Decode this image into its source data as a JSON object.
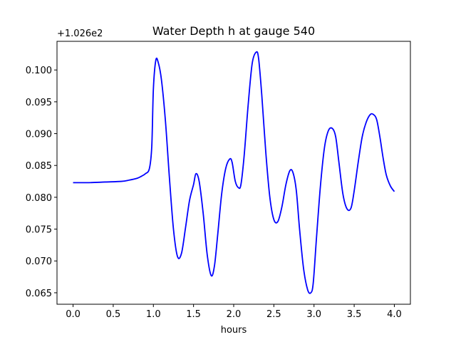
{
  "chart_data": {
    "type": "line",
    "title": "Water Depth h at gauge 540",
    "xlabel": "hours",
    "ylabel": "",
    "y_offset_label": "+1.026e2",
    "xlim": [
      -0.2,
      4.2
    ],
    "ylim": [
      0.0632,
      0.1045
    ],
    "x_ticks": [
      0.0,
      0.5,
      1.0,
      1.5,
      2.0,
      2.5,
      3.0,
      3.5,
      4.0
    ],
    "x_tick_labels": [
      "0.0",
      "0.5",
      "1.0",
      "1.5",
      "2.0",
      "2.5",
      "3.0",
      "3.5",
      "4.0"
    ],
    "y_ticks": [
      0.065,
      0.07,
      0.075,
      0.08,
      0.085,
      0.09,
      0.095,
      0.1
    ],
    "y_tick_labels": [
      "0.065",
      "0.070",
      "0.075",
      "0.080",
      "0.085",
      "0.090",
      "0.095",
      "0.100"
    ],
    "grid": false,
    "series": [
      {
        "color": "#0000ff",
        "x": [
          0.0,
          0.2,
          0.4,
          0.6,
          0.7,
          0.8,
          0.85,
          0.9,
          0.95,
          0.98,
          1.0,
          1.03,
          1.06,
          1.1,
          1.15,
          1.2,
          1.25,
          1.3,
          1.35,
          1.4,
          1.45,
          1.5,
          1.53,
          1.57,
          1.62,
          1.67,
          1.72,
          1.76,
          1.8,
          1.85,
          1.9,
          1.95,
          1.98,
          2.02,
          2.06,
          2.09,
          2.13,
          2.18,
          2.23,
          2.28,
          2.31,
          2.35,
          2.4,
          2.45,
          2.5,
          2.55,
          2.6,
          2.65,
          2.7,
          2.74,
          2.78,
          2.82,
          2.87,
          2.92,
          2.96,
          2.99,
          3.03,
          3.08,
          3.13,
          3.18,
          3.23,
          3.27,
          3.31,
          3.36,
          3.41,
          3.46,
          3.5,
          3.55,
          3.6,
          3.65,
          3.7,
          3.74,
          3.78,
          3.82,
          3.86,
          3.9,
          3.95,
          4.0
        ],
        "y": [
          0.0823,
          0.0823,
          0.0824,
          0.0825,
          0.0827,
          0.083,
          0.0833,
          0.0837,
          0.0845,
          0.088,
          0.097,
          0.1015,
          0.1012,
          0.0985,
          0.092,
          0.083,
          0.075,
          0.0707,
          0.0712,
          0.0752,
          0.0795,
          0.082,
          0.0837,
          0.0825,
          0.0775,
          0.071,
          0.0677,
          0.0692,
          0.074,
          0.0805,
          0.0845,
          0.086,
          0.0855,
          0.0825,
          0.0815,
          0.082,
          0.0865,
          0.0945,
          0.101,
          0.1028,
          0.1018,
          0.096,
          0.087,
          0.08,
          0.0765,
          0.0762,
          0.0785,
          0.082,
          0.0842,
          0.0838,
          0.081,
          0.075,
          0.0688,
          0.0655,
          0.065,
          0.0665,
          0.0735,
          0.0818,
          0.0878,
          0.0905,
          0.0908,
          0.0895,
          0.0855,
          0.0805,
          0.0782,
          0.0783,
          0.081,
          0.0855,
          0.0895,
          0.0918,
          0.093,
          0.093,
          0.0922,
          0.0895,
          0.0862,
          0.0835,
          0.0818,
          0.0809
        ]
      }
    ]
  }
}
